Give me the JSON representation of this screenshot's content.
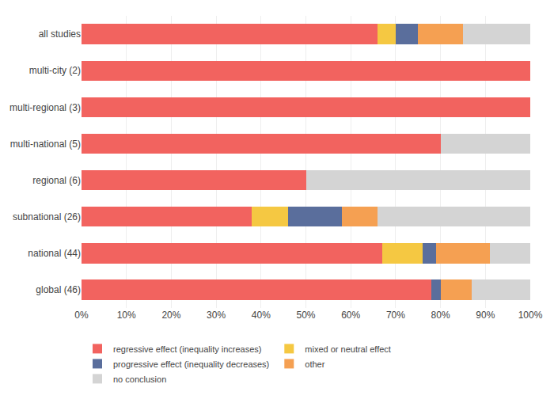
{
  "chart_data": {
    "type": "bar",
    "orientation": "horizontal",
    "stacked": true,
    "categories": [
      "all studies",
      "multi-city (2)",
      "multi-regional (3)",
      "multi-national (5)",
      "regional (6)",
      "subnational (26)",
      "national (44)",
      "global (46)"
    ],
    "series": [
      {
        "name": "regressive effect (inequality increases)",
        "color": "#f2635f",
        "values": [
          66,
          100,
          100,
          80,
          50,
          38,
          67,
          78
        ]
      },
      {
        "name": "mixed or neutral effect",
        "color": "#f5c842",
        "values": [
          4,
          0,
          0,
          0,
          0,
          8,
          9,
          0
        ]
      },
      {
        "name": "progressive effect (inequality decreases)",
        "color": "#5a6e9c",
        "values": [
          5,
          0,
          0,
          0,
          0,
          12,
          3,
          2
        ]
      },
      {
        "name": "other",
        "color": "#f5a052",
        "values": [
          10,
          0,
          0,
          0,
          0,
          8,
          12,
          7
        ]
      },
      {
        "name": "no conclusion",
        "color": "#d4d4d4",
        "values": [
          15,
          0,
          0,
          20,
          50,
          34,
          9,
          13
        ]
      }
    ],
    "xlim": [
      0,
      100
    ],
    "xticks": [
      {
        "value": 0,
        "label": "0%"
      },
      {
        "value": 10,
        "label": "10%"
      },
      {
        "value": 20,
        "label": "20%"
      },
      {
        "value": 30,
        "label": "30%"
      },
      {
        "value": 40,
        "label": "40%"
      },
      {
        "value": 50,
        "label": "50%"
      },
      {
        "value": 60,
        "label": "60%"
      },
      {
        "value": 70,
        "label": "70%"
      },
      {
        "value": 80,
        "label": "80%"
      },
      {
        "value": 90,
        "label": "90%"
      },
      {
        "value": 100,
        "label": "100%"
      }
    ],
    "grid": true,
    "legend": "lower left"
  }
}
